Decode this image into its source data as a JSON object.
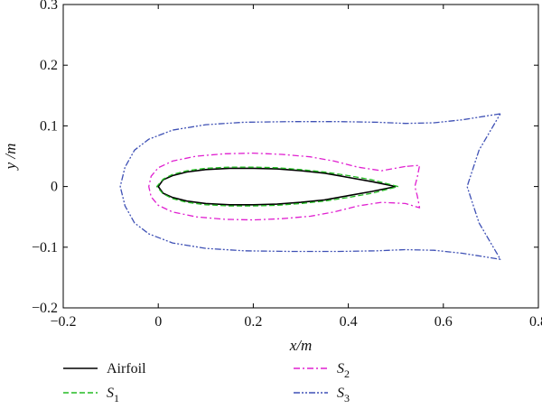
{
  "chart_data": {
    "type": "line",
    "xlabel": "x/m",
    "ylabel": "y /m",
    "xlim": [
      -0.2,
      0.8
    ],
    "ylim": [
      -0.2,
      0.3
    ],
    "xticks": [
      "-0.2",
      "0",
      "0.2",
      "0.4",
      "0.6",
      "0.8"
    ],
    "yticks": [
      "-0.2",
      "-0.1",
      "0",
      "0.1",
      "0.2",
      "0.3"
    ],
    "legend_position": "bottom",
    "series": [
      {
        "name": "Airfoil",
        "legend_label": "Airfoil",
        "legend_sub": "",
        "color": "#000000",
        "style": "solid",
        "x": [
          0.5,
          0.45,
          0.4,
          0.35,
          0.3,
          0.25,
          0.2,
          0.15,
          0.1,
          0.06,
          0.03,
          0.01,
          0.0,
          0.01,
          0.03,
          0.06,
          0.1,
          0.15,
          0.2,
          0.25,
          0.3,
          0.35,
          0.4,
          0.45,
          0.5
        ],
        "y": [
          0.0,
          0.008,
          0.015,
          0.022,
          0.026,
          0.029,
          0.03,
          0.03,
          0.028,
          0.024,
          0.018,
          0.011,
          0.0,
          -0.011,
          -0.018,
          -0.024,
          -0.028,
          -0.03,
          -0.03,
          -0.029,
          -0.026,
          -0.022,
          -0.015,
          -0.008,
          0.0
        ]
      },
      {
        "name": "S1",
        "legend_label": "S",
        "legend_sub": "1",
        "color": "#22bb22",
        "style": "dashed",
        "x": [
          0.505,
          0.45,
          0.4,
          0.35,
          0.3,
          0.25,
          0.2,
          0.15,
          0.1,
          0.06,
          0.03,
          0.01,
          -0.003,
          0.01,
          0.03,
          0.06,
          0.1,
          0.15,
          0.2,
          0.25,
          0.3,
          0.35,
          0.4,
          0.45,
          0.505
        ],
        "y": [
          0.0,
          0.011,
          0.018,
          0.024,
          0.028,
          0.031,
          0.032,
          0.032,
          0.03,
          0.026,
          0.02,
          0.012,
          0.0,
          -0.012,
          -0.02,
          -0.026,
          -0.03,
          -0.032,
          -0.032,
          -0.031,
          -0.028,
          -0.024,
          -0.018,
          -0.011,
          0.0
        ]
      },
      {
        "name": "S2",
        "legend_label": "S",
        "legend_sub": "2",
        "color": "#e020d0",
        "style": "dashdot",
        "x": [
          0.52,
          0.47,
          0.42,
          0.37,
          0.32,
          0.26,
          0.2,
          0.14,
          0.08,
          0.03,
          0.0,
          -0.015,
          -0.02,
          -0.015,
          0.0,
          0.03,
          0.08,
          0.14,
          0.2,
          0.26,
          0.32,
          0.37,
          0.42,
          0.47,
          0.52,
          0.55,
          0.545,
          0.54,
          0.545,
          0.55,
          0.52
        ],
        "y": [
          0.033,
          0.026,
          0.032,
          0.042,
          0.049,
          0.053,
          0.055,
          0.054,
          0.05,
          0.042,
          0.031,
          0.017,
          0.0,
          -0.017,
          -0.031,
          -0.042,
          -0.05,
          -0.054,
          -0.055,
          -0.053,
          -0.049,
          -0.042,
          -0.032,
          -0.026,
          -0.028,
          -0.035,
          -0.015,
          0.0,
          0.015,
          0.035,
          0.033
        ]
      },
      {
        "name": "S3",
        "legend_label": "S",
        "legend_sub": "3",
        "color": "#3f51b5",
        "style": "dashdotdot",
        "x": [
          0.72,
          0.64,
          0.58,
          0.52,
          0.46,
          0.38,
          0.28,
          0.18,
          0.1,
          0.03,
          -0.02,
          -0.05,
          -0.07,
          -0.08,
          -0.07,
          -0.05,
          -0.02,
          0.03,
          0.1,
          0.18,
          0.28,
          0.38,
          0.46,
          0.52,
          0.58,
          0.64,
          0.72,
          0.675,
          0.65,
          0.675,
          0.72
        ],
        "y": [
          0.12,
          0.11,
          0.105,
          0.104,
          0.106,
          0.107,
          0.107,
          0.106,
          0.102,
          0.093,
          0.078,
          0.06,
          0.032,
          0.0,
          -0.032,
          -0.06,
          -0.078,
          -0.093,
          -0.102,
          -0.106,
          -0.107,
          -0.107,
          -0.106,
          -0.104,
          -0.105,
          -0.11,
          -0.12,
          -0.06,
          0.0,
          0.06,
          0.12
        ]
      }
    ]
  }
}
